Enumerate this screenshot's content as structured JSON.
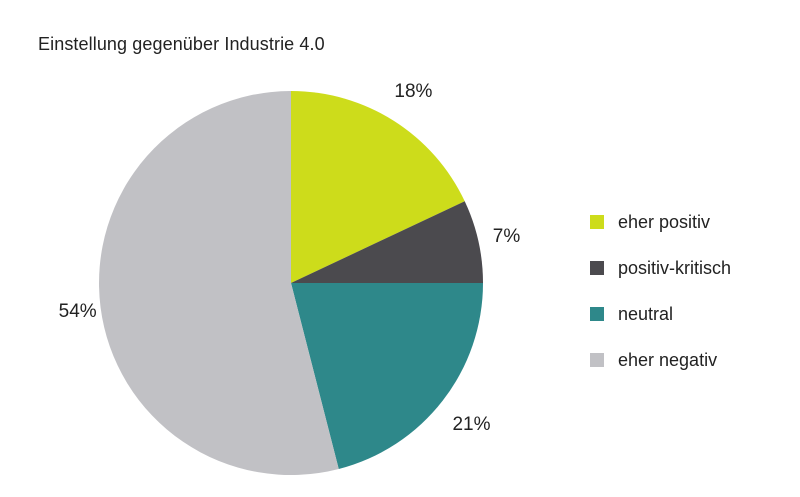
{
  "chart_data": {
    "type": "pie",
    "title": "Einstellung gegenüber Industrie 4.0",
    "legend_position": "right",
    "slices": [
      {
        "label": "eher positiv",
        "value": 18,
        "display": "18%",
        "color": "#cddc1b"
      },
      {
        "label": "positiv-kritisch",
        "value": 7,
        "display": "7%",
        "color": "#4b4a4e"
      },
      {
        "label": "neutral",
        "value": 21,
        "display": "21%",
        "color": "#2e888a"
      },
      {
        "label": "eher negativ",
        "value": 54,
        "display": "54%",
        "color": "#c1c1c5"
      }
    ]
  }
}
